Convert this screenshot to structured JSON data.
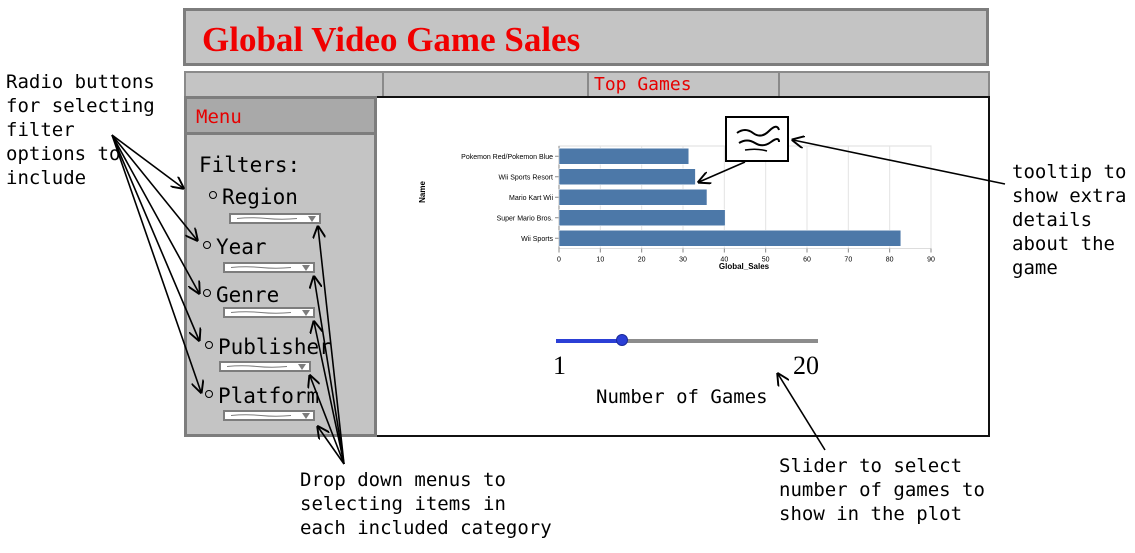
{
  "header": {
    "title": "Global Video Game Sales"
  },
  "tabs": {
    "active_label": "Top Games"
  },
  "menu": {
    "header": "Menu",
    "filters_label": "Filters:",
    "options": [
      {
        "label": "Region"
      },
      {
        "label": "Year"
      },
      {
        "label": "Genre"
      },
      {
        "label": "Publisher"
      },
      {
        "label": "Platform"
      }
    ]
  },
  "chart_data": {
    "type": "bar",
    "orientation": "horizontal",
    "categories": [
      "Pokemon Red/Pokemon Blue",
      "Wii Sports Resort",
      "Mario Kart Wii",
      "Super Mario Bros.",
      "Wii Sports"
    ],
    "values": [
      31.4,
      33.0,
      35.8,
      40.2,
      82.7
    ],
    "xlabel": "Global_Sales",
    "ylabel": "Name",
    "xlim": [
      0,
      90
    ],
    "xticks": [
      "0",
      "10",
      "20",
      "30",
      "40",
      "50",
      "60",
      "70",
      "80",
      "90"
    ],
    "grid": true,
    "bar_color": "#4c78a8"
  },
  "slider": {
    "min_label": "1",
    "max_label": "20",
    "label": "Number of Games",
    "value_fraction": 0.25
  },
  "annotations": {
    "radio_note": "Radio buttons\nfor selecting\nfilter\noptions to\ninclude",
    "tooltip_note": "tooltip to\nshow extra\ndetails\nabout the\ngame",
    "dropdown_note": "Drop down menus to\nselecting items in\neach included category",
    "slider_note": "Slider to select\nnumber of games to\nshow in the plot"
  },
  "colors": {
    "title": "#f00000",
    "panel": "#c4c4c4",
    "accent": "#2b3fd6"
  }
}
